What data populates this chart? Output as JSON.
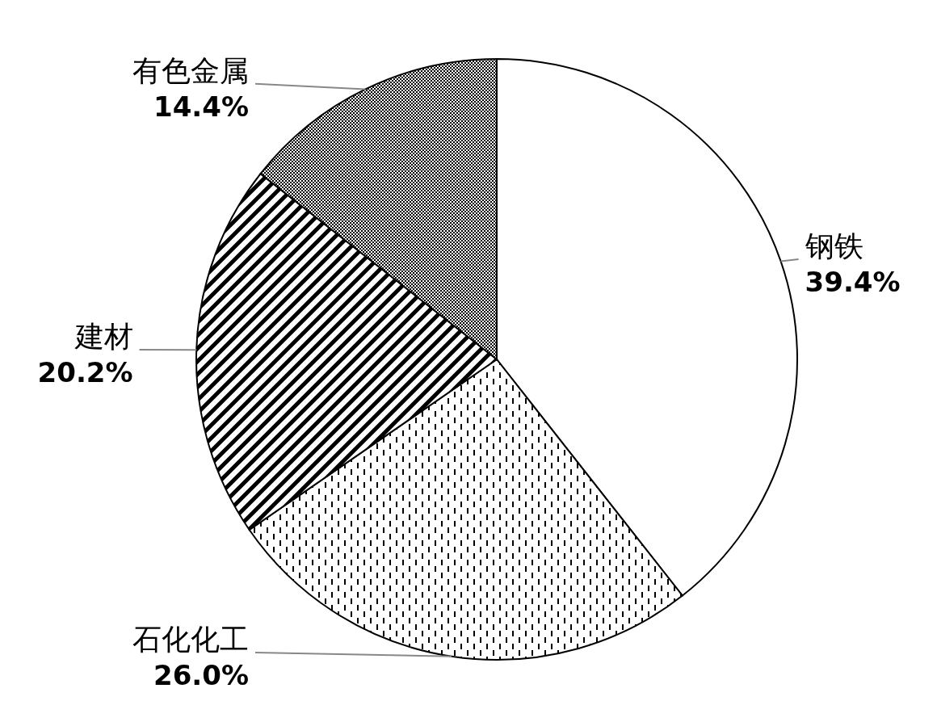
{
  "chart_data": {
    "type": "pie",
    "categories": [
      "钢铁",
      "石化化工",
      "建材",
      "有色金属"
    ],
    "values": [
      39.4,
      26.0,
      20.2,
      14.4
    ],
    "value_labels": [
      "39.4%",
      "26.0%",
      "20.2%",
      "14.4%"
    ]
  }
}
